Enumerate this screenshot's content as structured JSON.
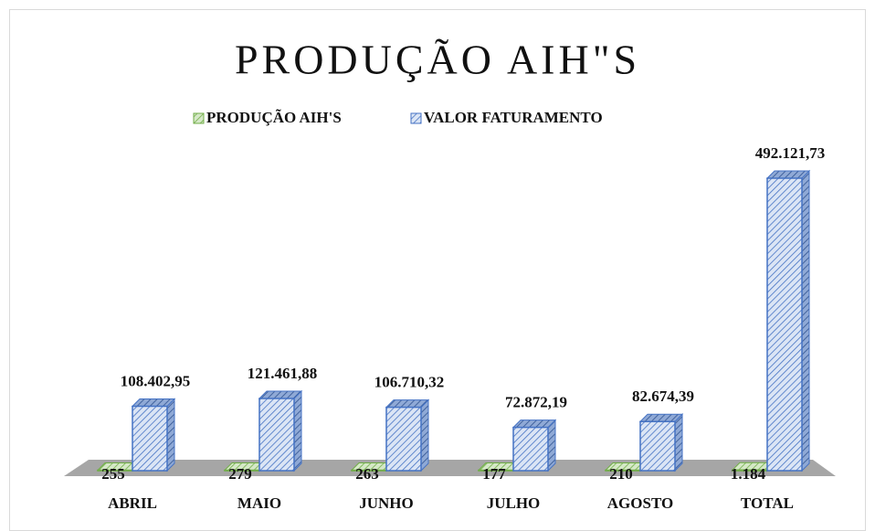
{
  "chart_data": {
    "type": "bar3d",
    "title": "PRODUÇÃO AIH\"S",
    "categories": [
      "ABRIL",
      "MAIO",
      "JUNHO",
      "JULHO",
      "AGOSTO",
      "TOTAL"
    ],
    "series": [
      {
        "name": "PRODUÇÃO AIH'S",
        "color": "#70ad47",
        "values": [
          255,
          279,
          263,
          177,
          210,
          1184
        ],
        "value_labels": [
          "255",
          "279",
          "263",
          "177",
          "210",
          "1.184"
        ]
      },
      {
        "name": "VALOR FATURAMENTO",
        "color": "#4472c4",
        "values": [
          108402.95,
          121461.88,
          106710.32,
          72872.19,
          82674.39,
          492121.73
        ],
        "value_labels": [
          "108.402,95",
          "121.461,88",
          "106.710,32",
          "72.872,19",
          "82.674,39",
          "492.121,73"
        ]
      }
    ],
    "legend": "top"
  }
}
